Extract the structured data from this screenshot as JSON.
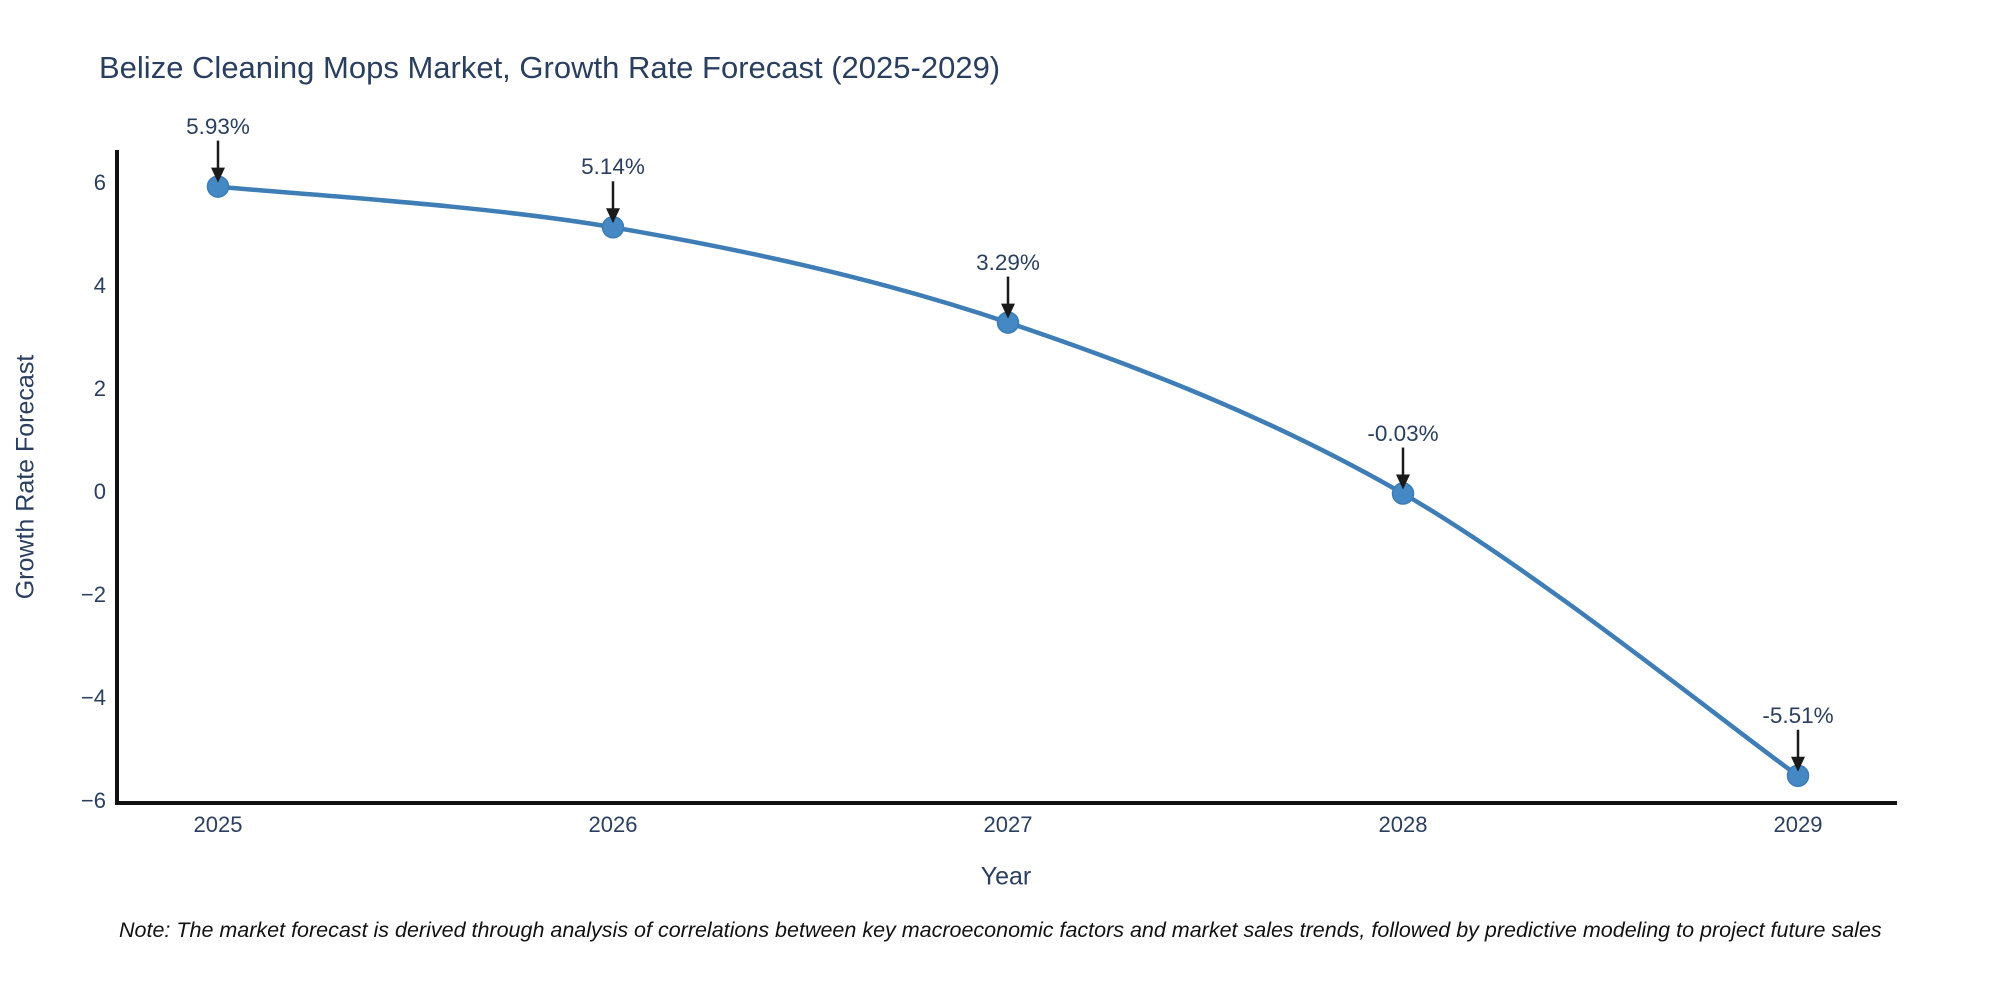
{
  "chart_data": {
    "type": "line",
    "title": "Belize Cleaning Mops Market, Growth Rate Forecast (2025-2029)",
    "xlabel": "Year",
    "ylabel": "Growth Rate Forecast",
    "x": [
      2025,
      2026,
      2027,
      2028,
      2029
    ],
    "series": [
      {
        "name": "Growth Rate Forecast",
        "values": [
          5.93,
          5.14,
          3.29,
          -0.03,
          -5.51
        ]
      }
    ],
    "point_labels": [
      "5.93%",
      "5.14%",
      "3.29%",
      "-0.03%",
      "-5.51%"
    ],
    "x_tick_labels": [
      "2025",
      "2026",
      "2027",
      "2028",
      "2029"
    ],
    "y_ticks": [
      6,
      4,
      2,
      0,
      -2,
      -4,
      -6
    ],
    "y_tick_labels": [
      "6",
      "4",
      "2",
      "0",
      "−2",
      "−4",
      "−6"
    ],
    "ylim": [
      -6.1,
      6.7
    ],
    "xlim": [
      2024.74,
      2029.25
    ],
    "grid": false,
    "legend_position": "none",
    "line_smoothing": "spline",
    "colors": {
      "line": "#3e7db6",
      "marker_fill": "#4489c4",
      "marker_edge": "#3a7cb8",
      "axis_line": "#111111",
      "text": "#2a3f5f",
      "arrow": "#1a1a1a",
      "background": "#ffffff"
    }
  },
  "note": "Note: The market forecast is derived through analysis of correlations between key macroeconomic factors and market sales trends, followed by predictive modeling to project future sales"
}
